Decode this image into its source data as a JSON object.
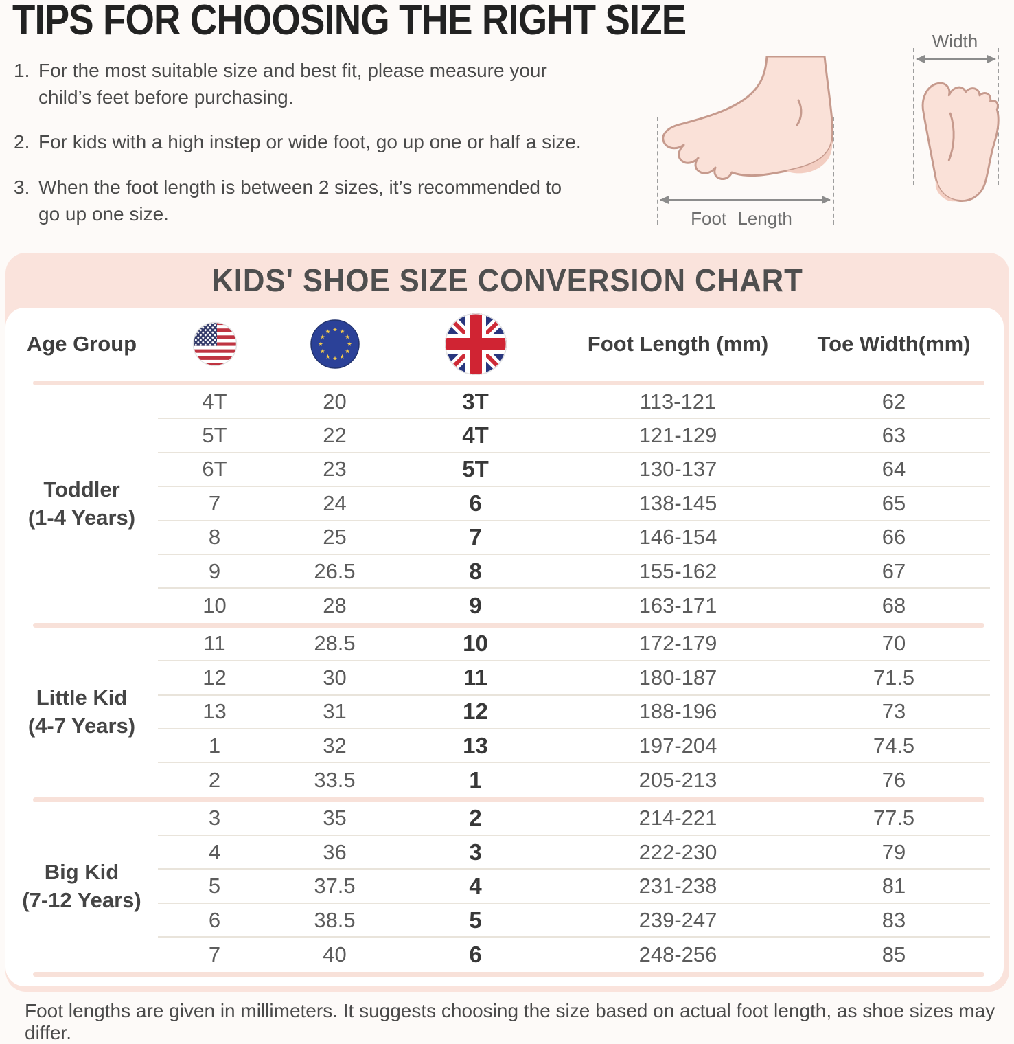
{
  "tips": {
    "title": "TIPS FOR CHOOSING THE RIGHT SIZE",
    "items": [
      {
        "num": "1.",
        "lines": [
          "For the most suitable size and best fit, please measure your",
          "child’s feet before purchasing."
        ]
      },
      {
        "num": "2.",
        "lines": [
          "For kids with a high instep or wide foot, go up one or half a size."
        ]
      },
      {
        "num": "3.",
        "lines": [
          "When the foot length is between 2 sizes, it’s recommended to",
          "go up one size."
        ]
      }
    ]
  },
  "diagram": {
    "foot_length_label": "Foot Length",
    "width_label": "Width",
    "foot_icons": [
      "foot-side-view-icon",
      "foot-sole-view-icon"
    ]
  },
  "chart": {
    "banner_title": "KIDS' SHOE SIZE CONVERSION CHART",
    "header": {
      "age_group": "Age Group",
      "us_flag": "us-flag",
      "eu_flag": "eu-flag",
      "uk_flag": "uk-flag",
      "foot_length": "Foot Length (mm)",
      "toe_width": "Toe Width(mm)"
    }
  },
  "chart_data": {
    "type": "table",
    "title": "KIDS' SHOE SIZE CONVERSION CHART",
    "columns": [
      "Age Group",
      "US",
      "EU",
      "UK",
      "Foot Length (mm)",
      "Toe Width(mm)"
    ],
    "sections": [
      {
        "age_group": [
          "Toddler",
          "(1-4 Years)"
        ],
        "rows": [
          [
            "4T",
            "20",
            "3T",
            "113-121",
            "62"
          ],
          [
            "5T",
            "22",
            "4T",
            "121-129",
            "63"
          ],
          [
            "6T",
            "23",
            "5T",
            "130-137",
            "64"
          ],
          [
            "7",
            "24",
            "6",
            "138-145",
            "65"
          ],
          [
            "8",
            "25",
            "7",
            "146-154",
            "66"
          ],
          [
            "9",
            "26.5",
            "8",
            "155-162",
            "67"
          ],
          [
            "10",
            "28",
            "9",
            "163-171",
            "68"
          ]
        ]
      },
      {
        "age_group": [
          "Little Kid",
          "(4-7 Years)"
        ],
        "rows": [
          [
            "11",
            "28.5",
            "10",
            "172-179",
            "70"
          ],
          [
            "12",
            "30",
            "11",
            "180-187",
            "71.5"
          ],
          [
            "13",
            "31",
            "12",
            "188-196",
            "73"
          ],
          [
            "1",
            "32",
            "13",
            "197-204",
            "74.5"
          ],
          [
            "2",
            "33.5",
            "1",
            "205-213",
            "76"
          ]
        ]
      },
      {
        "age_group": [
          "Big Kid",
          "(7-12 Years)"
        ],
        "rows": [
          [
            "3",
            "35",
            "2",
            "214-221",
            "77.5"
          ],
          [
            "4",
            "36",
            "3",
            "222-230",
            "79"
          ],
          [
            "5",
            "37.5",
            "4",
            "231-238",
            "81"
          ],
          [
            "6",
            "38.5",
            "5",
            "239-247",
            "83"
          ],
          [
            "7",
            "40",
            "6",
            "248-256",
            "85"
          ]
        ]
      }
    ]
  },
  "footer": {
    "note": "Foot lengths are given in millimeters. It suggests choosing the size based on actual foot length, as shoe sizes may differ."
  },
  "colors": {
    "banner_pink": "#FAE3DC",
    "separator_pink": "#F8E1D9",
    "row_separator": "#E9E4DB",
    "foot_fill": "#FAE1D8",
    "foot_stroke": "#C69A8D",
    "title_text": "#222222",
    "table_text": "#5C5C5C"
  }
}
